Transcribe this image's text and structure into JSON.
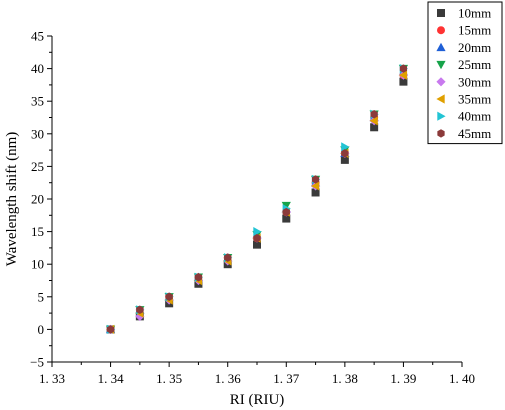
{
  "chart_data": {
    "type": "scatter",
    "title": "",
    "xlabel": "RI (RIU)",
    "ylabel": "Wavelength shift (nm)",
    "xlim": [
      1.33,
      1.4
    ],
    "ylim": [
      -5,
      45
    ],
    "xticks": [
      1.33,
      1.34,
      1.35,
      1.36,
      1.37,
      1.38,
      1.39,
      1.4
    ],
    "xtick_labels": [
      "1. 33",
      "1. 34",
      "1. 35",
      "1. 36",
      "1. 37",
      "1. 38",
      "1. 39",
      "1. 40"
    ],
    "yticks": [
      -5,
      0,
      5,
      10,
      15,
      20,
      25,
      30,
      35,
      40,
      45
    ],
    "ytick_labels": [
      "−5",
      "0",
      "5",
      "10",
      "15",
      "20",
      "25",
      "30",
      "35",
      "40",
      "45"
    ],
    "grid": false,
    "legend_position": "top-right",
    "x": [
      1.34,
      1.345,
      1.35,
      1.355,
      1.36,
      1.365,
      1.37,
      1.375,
      1.38,
      1.385,
      1.39
    ],
    "series": [
      {
        "name": "10mm",
        "marker": "square",
        "color": "#3a3a3a",
        "values": [
          0,
          2,
          4,
          7,
          10,
          13,
          17,
          21,
          26,
          31,
          38
        ]
      },
      {
        "name": "15mm",
        "marker": "circle",
        "color": "#ff3333",
        "values": [
          0,
          3,
          5,
          8,
          11,
          14,
          18,
          22.5,
          27,
          32.5,
          39
        ]
      },
      {
        "name": "20mm",
        "marker": "triangle-up",
        "color": "#1f5fd6",
        "values": [
          0,
          3,
          5,
          8,
          11,
          14.5,
          18.5,
          22.5,
          27,
          32.5,
          39.5
        ]
      },
      {
        "name": "25mm",
        "marker": "triangle-down",
        "color": "#16a34a",
        "values": [
          0,
          3,
          5,
          8,
          11,
          14.5,
          19,
          23,
          27.5,
          33,
          40
        ]
      },
      {
        "name": "30mm",
        "marker": "diamond",
        "color": "#c879ee",
        "values": [
          0,
          2,
          4.5,
          7.5,
          10.5,
          14,
          18,
          22,
          27,
          32,
          39
        ]
      },
      {
        "name": "35mm",
        "marker": "triangle-left",
        "color": "#e0a000",
        "values": [
          0,
          2.5,
          4.5,
          7.5,
          10.5,
          14,
          18,
          22,
          27,
          32,
          39
        ]
      },
      {
        "name": "40mm",
        "marker": "triangle-right",
        "color": "#22c4d4",
        "values": [
          0,
          3,
          5,
          8,
          11,
          15,
          18.5,
          23,
          28,
          33,
          40
        ]
      },
      {
        "name": "45mm",
        "marker": "hexagon",
        "color": "#8b3a3a",
        "values": [
          0,
          3,
          5,
          8,
          11,
          14,
          18,
          23,
          27,
          33,
          40
        ]
      }
    ]
  }
}
